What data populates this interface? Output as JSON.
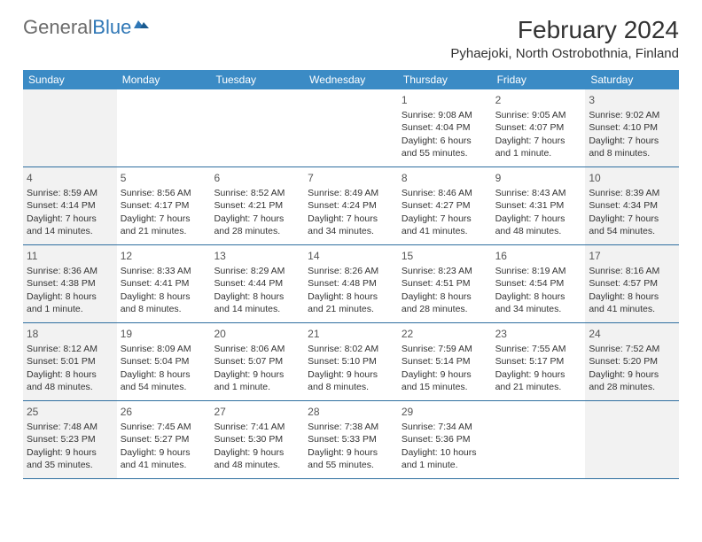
{
  "logo": {
    "text_gray": "General",
    "text_blue": "Blue"
  },
  "title": "February 2024",
  "location": "Pyhaejoki, North Ostrobothnia, Finland",
  "colors": {
    "header_bg": "#3b8bc5",
    "header_text": "#ffffff",
    "weekend_bg": "#f2f2f2",
    "border": "#2f6fa0",
    "text": "#333333",
    "logo_gray": "#6b6b6b",
    "logo_blue": "#2f77b6"
  },
  "weekdays": [
    "Sunday",
    "Monday",
    "Tuesday",
    "Wednesday",
    "Thursday",
    "Friday",
    "Saturday"
  ],
  "weeks": [
    [
      {
        "n": "",
        "sunrise": "",
        "sunset": "",
        "daylight": ""
      },
      {
        "n": "",
        "sunrise": "",
        "sunset": "",
        "daylight": ""
      },
      {
        "n": "",
        "sunrise": "",
        "sunset": "",
        "daylight": ""
      },
      {
        "n": "",
        "sunrise": "",
        "sunset": "",
        "daylight": ""
      },
      {
        "n": "1",
        "sunrise": "Sunrise: 9:08 AM",
        "sunset": "Sunset: 4:04 PM",
        "daylight": "Daylight: 6 hours and 55 minutes."
      },
      {
        "n": "2",
        "sunrise": "Sunrise: 9:05 AM",
        "sunset": "Sunset: 4:07 PM",
        "daylight": "Daylight: 7 hours and 1 minute."
      },
      {
        "n": "3",
        "sunrise": "Sunrise: 9:02 AM",
        "sunset": "Sunset: 4:10 PM",
        "daylight": "Daylight: 7 hours and 8 minutes."
      }
    ],
    [
      {
        "n": "4",
        "sunrise": "Sunrise: 8:59 AM",
        "sunset": "Sunset: 4:14 PM",
        "daylight": "Daylight: 7 hours and 14 minutes."
      },
      {
        "n": "5",
        "sunrise": "Sunrise: 8:56 AM",
        "sunset": "Sunset: 4:17 PM",
        "daylight": "Daylight: 7 hours and 21 minutes."
      },
      {
        "n": "6",
        "sunrise": "Sunrise: 8:52 AM",
        "sunset": "Sunset: 4:21 PM",
        "daylight": "Daylight: 7 hours and 28 minutes."
      },
      {
        "n": "7",
        "sunrise": "Sunrise: 8:49 AM",
        "sunset": "Sunset: 4:24 PM",
        "daylight": "Daylight: 7 hours and 34 minutes."
      },
      {
        "n": "8",
        "sunrise": "Sunrise: 8:46 AM",
        "sunset": "Sunset: 4:27 PM",
        "daylight": "Daylight: 7 hours and 41 minutes."
      },
      {
        "n": "9",
        "sunrise": "Sunrise: 8:43 AM",
        "sunset": "Sunset: 4:31 PM",
        "daylight": "Daylight: 7 hours and 48 minutes."
      },
      {
        "n": "10",
        "sunrise": "Sunrise: 8:39 AM",
        "sunset": "Sunset: 4:34 PM",
        "daylight": "Daylight: 7 hours and 54 minutes."
      }
    ],
    [
      {
        "n": "11",
        "sunrise": "Sunrise: 8:36 AM",
        "sunset": "Sunset: 4:38 PM",
        "daylight": "Daylight: 8 hours and 1 minute."
      },
      {
        "n": "12",
        "sunrise": "Sunrise: 8:33 AM",
        "sunset": "Sunset: 4:41 PM",
        "daylight": "Daylight: 8 hours and 8 minutes."
      },
      {
        "n": "13",
        "sunrise": "Sunrise: 8:29 AM",
        "sunset": "Sunset: 4:44 PM",
        "daylight": "Daylight: 8 hours and 14 minutes."
      },
      {
        "n": "14",
        "sunrise": "Sunrise: 8:26 AM",
        "sunset": "Sunset: 4:48 PM",
        "daylight": "Daylight: 8 hours and 21 minutes."
      },
      {
        "n": "15",
        "sunrise": "Sunrise: 8:23 AM",
        "sunset": "Sunset: 4:51 PM",
        "daylight": "Daylight: 8 hours and 28 minutes."
      },
      {
        "n": "16",
        "sunrise": "Sunrise: 8:19 AM",
        "sunset": "Sunset: 4:54 PM",
        "daylight": "Daylight: 8 hours and 34 minutes."
      },
      {
        "n": "17",
        "sunrise": "Sunrise: 8:16 AM",
        "sunset": "Sunset: 4:57 PM",
        "daylight": "Daylight: 8 hours and 41 minutes."
      }
    ],
    [
      {
        "n": "18",
        "sunrise": "Sunrise: 8:12 AM",
        "sunset": "Sunset: 5:01 PM",
        "daylight": "Daylight: 8 hours and 48 minutes."
      },
      {
        "n": "19",
        "sunrise": "Sunrise: 8:09 AM",
        "sunset": "Sunset: 5:04 PM",
        "daylight": "Daylight: 8 hours and 54 minutes."
      },
      {
        "n": "20",
        "sunrise": "Sunrise: 8:06 AM",
        "sunset": "Sunset: 5:07 PM",
        "daylight": "Daylight: 9 hours and 1 minute."
      },
      {
        "n": "21",
        "sunrise": "Sunrise: 8:02 AM",
        "sunset": "Sunset: 5:10 PM",
        "daylight": "Daylight: 9 hours and 8 minutes."
      },
      {
        "n": "22",
        "sunrise": "Sunrise: 7:59 AM",
        "sunset": "Sunset: 5:14 PM",
        "daylight": "Daylight: 9 hours and 15 minutes."
      },
      {
        "n": "23",
        "sunrise": "Sunrise: 7:55 AM",
        "sunset": "Sunset: 5:17 PM",
        "daylight": "Daylight: 9 hours and 21 minutes."
      },
      {
        "n": "24",
        "sunrise": "Sunrise: 7:52 AM",
        "sunset": "Sunset: 5:20 PM",
        "daylight": "Daylight: 9 hours and 28 minutes."
      }
    ],
    [
      {
        "n": "25",
        "sunrise": "Sunrise: 7:48 AM",
        "sunset": "Sunset: 5:23 PM",
        "daylight": "Daylight: 9 hours and 35 minutes."
      },
      {
        "n": "26",
        "sunrise": "Sunrise: 7:45 AM",
        "sunset": "Sunset: 5:27 PM",
        "daylight": "Daylight: 9 hours and 41 minutes."
      },
      {
        "n": "27",
        "sunrise": "Sunrise: 7:41 AM",
        "sunset": "Sunset: 5:30 PM",
        "daylight": "Daylight: 9 hours and 48 minutes."
      },
      {
        "n": "28",
        "sunrise": "Sunrise: 7:38 AM",
        "sunset": "Sunset: 5:33 PM",
        "daylight": "Daylight: 9 hours and 55 minutes."
      },
      {
        "n": "29",
        "sunrise": "Sunrise: 7:34 AM",
        "sunset": "Sunset: 5:36 PM",
        "daylight": "Daylight: 10 hours and 1 minute."
      },
      {
        "n": "",
        "sunrise": "",
        "sunset": "",
        "daylight": ""
      },
      {
        "n": "",
        "sunrise": "",
        "sunset": "",
        "daylight": ""
      }
    ]
  ]
}
